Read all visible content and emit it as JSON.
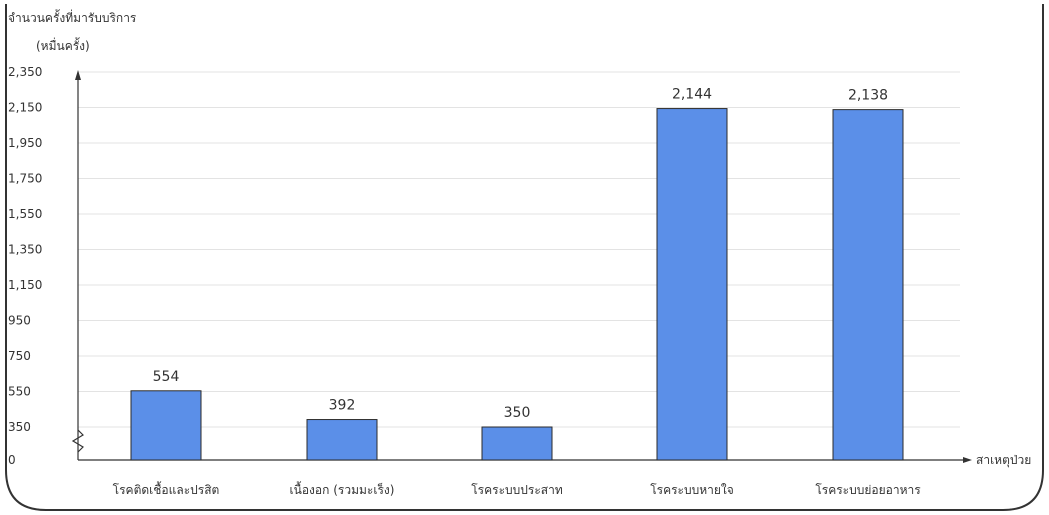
{
  "chart_data": {
    "type": "bar",
    "ylabel_lines": [
      "จำนวนครั้งที่มารับบริการ",
      "(หมื่นครั้ง)"
    ],
    "xlabel": "สาเหตุป่วย",
    "categories": [
      "โรคติดเชื้อและปรสิต",
      "เนื้องอก (รวมมะเร็ง)",
      "โรคระบบประสาท",
      "โรคระบบหายใจ",
      "โรคระบบย่อยอาหาร"
    ],
    "values": [
      554,
      392,
      350,
      2144,
      2138
    ],
    "value_labels": [
      "554",
      "392",
      "350",
      "2,144",
      "2,138"
    ],
    "y_ticks": [
      0,
      350,
      550,
      750,
      950,
      1150,
      1350,
      1550,
      1750,
      1950,
      2150,
      2350
    ],
    "y_tick_labels": [
      "0",
      "350",
      "550",
      "750",
      "950",
      "1,150",
      "1,350",
      "1,550",
      "1,750",
      "1,950",
      "2,150",
      "2,350"
    ],
    "axis_break": "between 0 and 350",
    "grid": true,
    "colors": {
      "bar": "#5b8fe8",
      "bar_edge": "#2b2b2b",
      "grid": "#e3e3e3",
      "frame": "#333333"
    }
  }
}
